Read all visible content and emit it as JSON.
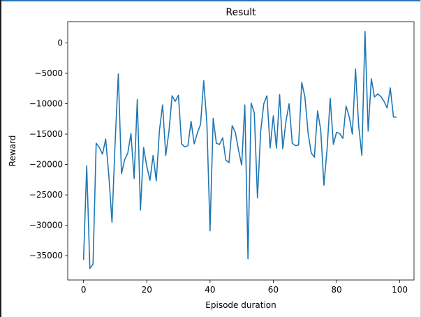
{
  "chart_data": {
    "type": "line",
    "title": "Result",
    "xlabel": "Episode duration",
    "ylabel": "Reward",
    "xlim": [
      -5,
      104.5
    ],
    "ylim": [
      -39000,
      3500
    ],
    "xticks": [
      0,
      20,
      40,
      60,
      80,
      100
    ],
    "yticks": [
      0,
      -5000,
      -10000,
      -15000,
      -20000,
      -25000,
      -30000,
      -35000
    ],
    "grid": false,
    "legend": "none",
    "series": [
      {
        "color": "#1f77b4",
        "x": [
          0,
          1,
          2,
          3,
          4,
          5,
          6,
          7,
          8,
          9,
          10,
          11,
          12,
          13,
          14,
          15,
          16,
          17,
          18,
          19,
          20,
          21,
          22,
          23,
          24,
          25,
          26,
          27,
          28,
          29,
          30,
          31,
          32,
          33,
          34,
          35,
          36,
          37,
          38,
          39,
          40,
          41,
          42,
          43,
          44,
          45,
          46,
          47,
          48,
          49,
          50,
          51,
          52,
          53,
          54,
          55,
          56,
          57,
          58,
          59,
          60,
          61,
          62,
          63,
          64,
          65,
          66,
          67,
          68,
          69,
          70,
          71,
          72,
          73,
          74,
          75,
          76,
          77,
          78,
          79,
          80,
          81,
          82,
          83,
          84,
          85,
          86,
          87,
          88,
          89,
          90,
          91,
          92,
          93,
          94,
          95,
          96,
          97,
          98,
          99
        ],
        "values": [
          -35700,
          -20200,
          -37100,
          -36400,
          -16500,
          -17200,
          -18300,
          -15800,
          -21800,
          -29500,
          -16200,
          -5100,
          -21500,
          -19200,
          -18100,
          -14900,
          -22300,
          -9300,
          -27500,
          -17200,
          -20300,
          -22600,
          -18500,
          -22700,
          -14400,
          -10200,
          -18500,
          -14600,
          -8700,
          -9600,
          -8600,
          -16600,
          -17100,
          -16900,
          -12900,
          -16600,
          -14800,
          -13400,
          -6200,
          -13200,
          -30900,
          -12400,
          -16500,
          -16700,
          -15600,
          -19300,
          -19700,
          -13600,
          -14700,
          -17600,
          -20100,
          -10200,
          -35500,
          -9900,
          -11500,
          -25500,
          -14600,
          -10000,
          -8700,
          -17300,
          -12000,
          -17300,
          -8500,
          -17400,
          -12900,
          -10000,
          -16500,
          -16900,
          -16800,
          -6500,
          -8900,
          -14800,
          -18100,
          -18800,
          -11200,
          -14300,
          -23400,
          -17600,
          -9100,
          -16700,
          -14700,
          -14900,
          -15700,
          -10400,
          -12100,
          -15000,
          -4300,
          -13600,
          -18500,
          1900,
          -14500,
          -5900,
          -8900,
          -8400,
          -8800,
          -9600,
          -10700,
          -7400,
          -12200,
          -12200
        ]
      }
    ]
  }
}
